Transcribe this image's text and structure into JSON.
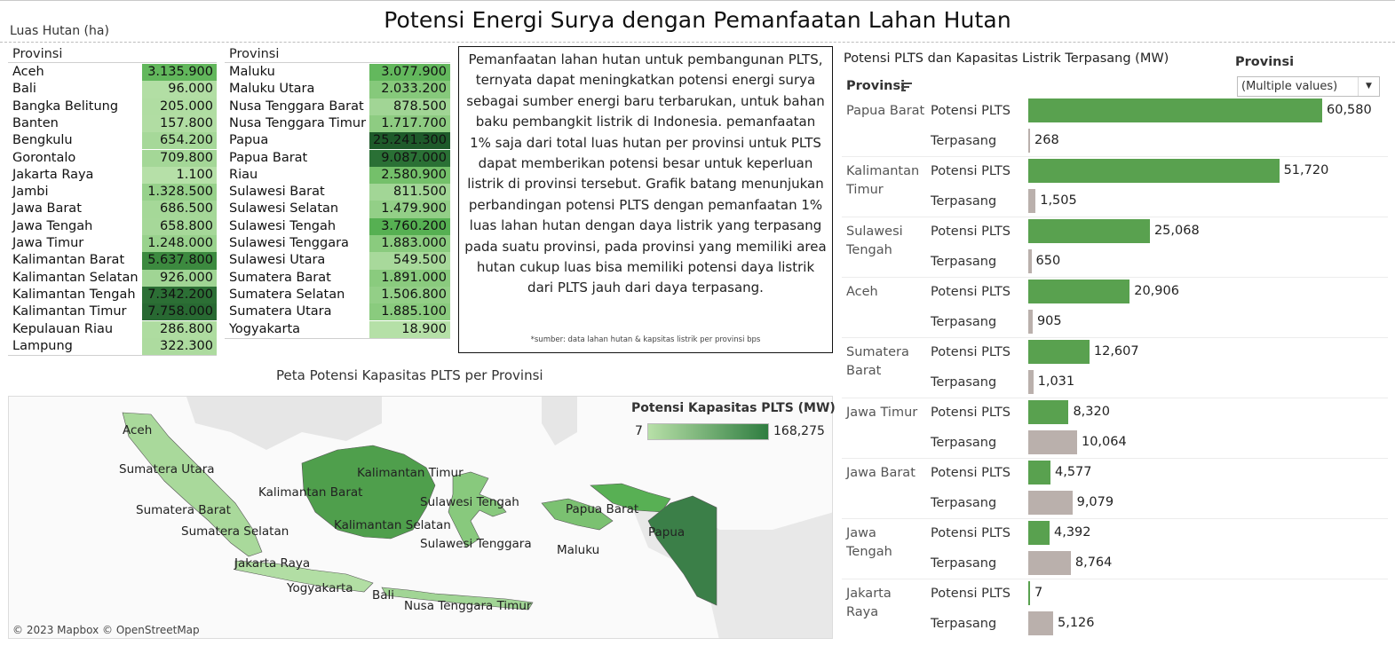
{
  "title": "Potensi Energi Surya dengan Pemanfaatan Lahan Hutan",
  "forest_subtitle": "Luas Hutan (ha)",
  "forest_table_left": {
    "header": "Provinsi",
    "rows": [
      {
        "name": "Aceh",
        "value": "3.135.900",
        "color": "#62b75c"
      },
      {
        "name": "Bali",
        "value": "96.000",
        "color": "#b2deA4"
      },
      {
        "name": "Bangka Belitung",
        "value": "205.000",
        "color": "#b0dda2"
      },
      {
        "name": "Banten",
        "value": "157.800",
        "color": "#b1dda3"
      },
      {
        "name": "Bengkulu",
        "value": "654.200",
        "color": "#a6d899"
      },
      {
        "name": "Gorontalo",
        "value": "709.800",
        "color": "#a4d797"
      },
      {
        "name": "Jakarta Raya",
        "value": "1.100",
        "color": "#b6e0a8"
      },
      {
        "name": "Jambi",
        "value": "1.328.500",
        "color": "#97d18b"
      },
      {
        "name": "Jawa Barat",
        "value": "686.500",
        "color": "#a5d898"
      },
      {
        "name": "Jawa Tengah",
        "value": "658.800",
        "color": "#a6d899"
      },
      {
        "name": "Jawa Timur",
        "value": "1.248.000",
        "color": "#99d28d"
      },
      {
        "name": "Kalimantan Barat",
        "value": "5.637.800",
        "color": "#3c8a3f"
      },
      {
        "name": "Kalimantan Selatan",
        "value": "926.000",
        "color": "#a0d594"
      },
      {
        "name": "Kalimantan Tengah",
        "value": "7.342.200",
        "color": "#2c6f35"
      },
      {
        "name": "Kalimantan Timur",
        "value": "7.758.000",
        "color": "#286932"
      },
      {
        "name": "Kepulauan Riau",
        "value": "286.800",
        "color": "#aedca0"
      },
      {
        "name": "Lampung",
        "value": "322.300",
        "color": "#addb9f"
      }
    ]
  },
  "forest_table_right": {
    "header": "Provinsi",
    "rows": [
      {
        "name": "Maluku",
        "value": "3.077.900",
        "color": "#63b85d"
      },
      {
        "name": "Maluku Utara",
        "value": "2.033.200",
        "color": "#86c97b"
      },
      {
        "name": "Nusa Tenggara Barat",
        "value": "878.500",
        "color": "#a1d595"
      },
      {
        "name": "Nusa Tenggara Timur",
        "value": "1.717.700",
        "color": "#8ecc82"
      },
      {
        "name": "Papua",
        "value": "25.241.300",
        "color": "#1e5a2a"
      },
      {
        "name": "Papua Barat",
        "value": "9.087.000",
        "color": "#2a7035"
      },
      {
        "name": "Riau",
        "value": "2.580.900",
        "color": "#74c06a"
      },
      {
        "name": "Sulawesi Barat",
        "value": "811.500",
        "color": "#a2d696"
      },
      {
        "name": "Sulawesi Selatan",
        "value": "1.479.900",
        "color": "#93cf87"
      },
      {
        "name": "Sulawesi Tengah",
        "value": "3.760.200",
        "color": "#56b052"
      },
      {
        "name": "Sulawesi Tenggara",
        "value": "1.883.000",
        "color": "#8acb7e"
      },
      {
        "name": "Sulawesi Utara",
        "value": "549.500",
        "color": "#a8d99b"
      },
      {
        "name": "Sumatera Barat",
        "value": "1.891.000",
        "color": "#8acb7e"
      },
      {
        "name": "Sumatera Selatan",
        "value": "1.506.800",
        "color": "#93cf87"
      },
      {
        "name": "Sumatera Utara",
        "value": "1.885.100",
        "color": "#8acb7e"
      },
      {
        "name": "Yogyakarta",
        "value": "18.900",
        "color": "#b5e0a7"
      }
    ]
  },
  "textbox": {
    "paragraph": "Pemanfaatan lahan hutan untuk pembangunan PLTS, ternyata dapat meningkatkan potensi energi surya sebagai sumber energi baru terbarukan, untuk bahan baku pembangkit listrik di Indonesia. pemanfaatan 1% saja dari total luas hutan per provinsi untuk PLTS dapat memberikan potensi besar untuk keperluan listrik di provinsi tersebut. Grafik batang menunjukan perbandingan potensi PLTS dengan pemanfaatan 1% luas lahan hutan dengan daya listrik yang terpasang pada suatu provinsi, pada provinsi yang memiliki area hutan cukup luas bisa memiliki potensi daya listrik dari PLTS jauh dari daya terpasang.",
    "source": "*sumber: data lahan hutan & kapsitas listrik per provinsi bps"
  },
  "map": {
    "title": "Peta Potensi Kapasitas PLTS per Provinsi",
    "legend_title": "Potensi Kapasitas PLTS (MW)",
    "legend_min": "7",
    "legend_max": "168,275",
    "attribution": "© 2023 Mapbox © OpenStreetMap",
    "labels": [
      "Aceh",
      "Sumatera Utara",
      "Kalimantan Barat",
      "Kalimantan Timur",
      "Sumatera Barat",
      "Sumatera Selatan",
      "Sulawesi Tengah",
      "Kalimantan Selatan",
      "Papua Barat",
      "Papua",
      "Sulawesi Tenggara",
      "Maluku",
      "Jakarta Raya",
      "Yogyakarta",
      "Bali",
      "Nusa Tenggara Timur"
    ]
  },
  "chart_header": {
    "title": "Potensi PLTS dan Kapasitas Listrik Terpasang (MW)",
    "filter_label": "Provinsi",
    "filter_value": "(Multiple values)",
    "row_header": "Provinsi"
  },
  "colors": {
    "potensi": "#59a14f",
    "terpasang": "#bab0ac"
  },
  "chart_data": {
    "type": "bar",
    "orientation": "horizontal",
    "measures": [
      "Potensi PLTS",
      "Terpasang"
    ],
    "categories": [
      {
        "name": "Papua Barat",
        "lines": [
          "Papua Barat"
        ]
      },
      {
        "name": "Kalimantan Timur",
        "lines": [
          "Kalimantan",
          "Timur"
        ]
      },
      {
        "name": "Sulawesi Tengah",
        "lines": [
          "Sulawesi",
          "Tengah"
        ]
      },
      {
        "name": "Aceh",
        "lines": [
          "Aceh"
        ]
      },
      {
        "name": "Sumatera Barat",
        "lines": [
          "Sumatera",
          "Barat"
        ]
      },
      {
        "name": "Jawa Timur",
        "lines": [
          "Jawa Timur"
        ]
      },
      {
        "name": "Jawa Barat",
        "lines": [
          "Jawa Barat"
        ]
      },
      {
        "name": "Jawa Tengah",
        "lines": [
          "Jawa",
          "Tengah"
        ]
      },
      {
        "name": "Jakarta Raya",
        "lines": [
          "Jakarta",
          "Raya"
        ]
      }
    ],
    "series": [
      {
        "name": "Potensi PLTS",
        "values": [
          60580,
          51720,
          25068,
          20906,
          12607,
          8320,
          4577,
          4392,
          7
        ],
        "labels": [
          "60,580",
          "51,720",
          "25,068",
          "20,906",
          "12,607",
          "8,320",
          "4,577",
          "4,392",
          "7"
        ]
      },
      {
        "name": "Terpasang",
        "values": [
          268,
          1505,
          650,
          905,
          1031,
          10064,
          9079,
          8764,
          5126
        ],
        "labels": [
          "268",
          "1,505",
          "650",
          "905",
          "1,031",
          "10,064",
          "9,079",
          "8,764",
          "5,126"
        ]
      }
    ],
    "xlim": [
      0,
      60580
    ]
  }
}
